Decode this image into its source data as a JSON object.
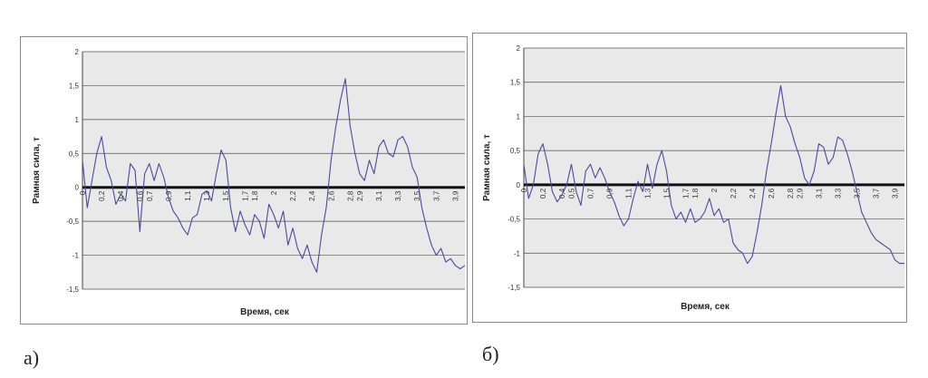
{
  "captions": {
    "a": "а)",
    "b": "б)"
  },
  "colors": {
    "series": "#4a4a9c",
    "grid": "#505050",
    "zero_line": "#111111",
    "plot_bg": "#e9e9e9"
  },
  "chart_data": [
    {
      "type": "line",
      "xlabel": "Время, сек",
      "ylabel": "Рамная сила, т",
      "ylim": [
        -1.5,
        2
      ],
      "yticks": [
        -1.5,
        -1,
        -0.5,
        0,
        0.5,
        1,
        1.5,
        2
      ],
      "ytick_labels": [
        "-1,5",
        "-1",
        "-0,5",
        "0",
        "0,5",
        "1",
        "1,5",
        "2"
      ],
      "xlim": [
        0,
        4
      ],
      "xtick_values": [
        0,
        0.2,
        0.4,
        0.6,
        0.7,
        0.9,
        1.1,
        1.3,
        1.5,
        1.7,
        1.8,
        2,
        2.2,
        2.4,
        2.6,
        2.8,
        2.9,
        3.1,
        3.3,
        3.5,
        3.7,
        3.9
      ],
      "xtick_labels": [
        "0",
        "0,2",
        "0,4",
        "0,6",
        "0,7",
        "0,9",
        "1,1",
        "1,3",
        "1,5",
        "1,7",
        "1,8",
        "2",
        "2,2",
        "2,4",
        "2,6",
        "2,8",
        "2,9",
        "3,1",
        "3,3",
        "3,5",
        "3,7",
        "3,9"
      ],
      "grid": true,
      "legend": false,
      "series": [
        {
          "x": [
            0,
            0.05,
            0.1,
            0.15,
            0.2,
            0.25,
            0.3,
            0.35,
            0.4,
            0.45,
            0.5,
            0.55,
            0.6,
            0.65,
            0.7,
            0.75,
            0.8,
            0.85,
            0.9,
            0.95,
            1.0,
            1.05,
            1.1,
            1.15,
            1.2,
            1.25,
            1.3,
            1.35,
            1.4,
            1.45,
            1.5,
            1.55,
            1.6,
            1.65,
            1.7,
            1.75,
            1.8,
            1.85,
            1.9,
            1.95,
            2.0,
            2.05,
            2.1,
            2.15,
            2.2,
            2.25,
            2.3,
            2.35,
            2.4,
            2.45,
            2.5,
            2.55,
            2.6,
            2.65,
            2.7,
            2.75,
            2.8,
            2.85,
            2.9,
            2.95,
            3.0,
            3.05,
            3.1,
            3.15,
            3.2,
            3.25,
            3.3,
            3.35,
            3.4,
            3.45,
            3.5,
            3.55,
            3.6,
            3.65,
            3.7,
            3.75,
            3.8,
            3.85,
            3.9,
            3.95,
            4.0
          ],
          "values": [
            0.4,
            -0.3,
            0.1,
            0.5,
            0.75,
            0.3,
            0.1,
            -0.25,
            -0.1,
            -0.2,
            0.35,
            0.25,
            -0.65,
            0.2,
            0.35,
            0.1,
            0.35,
            0.15,
            -0.15,
            -0.35,
            -0.45,
            -0.6,
            -0.7,
            -0.45,
            -0.4,
            -0.1,
            -0.05,
            -0.2,
            0.2,
            0.55,
            0.4,
            -0.3,
            -0.65,
            -0.35,
            -0.55,
            -0.7,
            -0.4,
            -0.5,
            -0.75,
            -0.25,
            -0.4,
            -0.6,
            -0.35,
            -0.85,
            -0.6,
            -0.9,
            -1.05,
            -0.85,
            -1.1,
            -1.25,
            -0.7,
            -0.3,
            0.4,
            0.9,
            1.3,
            1.6,
            0.9,
            0.5,
            0.2,
            0.1,
            0.4,
            0.2,
            0.6,
            0.7,
            0.5,
            0.45,
            0.7,
            0.75,
            0.6,
            0.3,
            0.15,
            -0.3,
            -0.6,
            -0.85,
            -1.0,
            -0.9,
            -1.1,
            -1.05,
            -1.15,
            -1.2,
            -1.15
          ]
        }
      ]
    },
    {
      "type": "line",
      "xlabel": "Время, сек",
      "ylabel": "Рамная сила, т",
      "ylim": [
        -1.5,
        2
      ],
      "yticks": [
        -1.5,
        -1,
        -0.5,
        0,
        0.5,
        1,
        1.5,
        2
      ],
      "ytick_labels": [
        "-1,5",
        "-1",
        "-0,5",
        "0",
        "0,5",
        "1",
        "1,5",
        "2"
      ],
      "xlim": [
        0,
        4
      ],
      "xtick_values": [
        0,
        0.2,
        0.4,
        0.5,
        0.7,
        0.9,
        1.1,
        1.3,
        1.5,
        1.7,
        1.8,
        2,
        2.2,
        2.4,
        2.6,
        2.8,
        2.9,
        3.1,
        3.3,
        3.5,
        3.7,
        3.9
      ],
      "xtick_labels": [
        "0",
        "0,2",
        "0,4",
        "0,5",
        "0,7",
        "0,9",
        "1,1",
        "1,3",
        "1,5",
        "1,7",
        "1,8",
        "2",
        "2,2",
        "2,4",
        "2,6",
        "2,8",
        "2,9",
        "3,1",
        "3,3",
        "3,5",
        "3,7",
        "3,9"
      ],
      "grid": true,
      "legend": false,
      "series": [
        {
          "x": [
            0,
            0.05,
            0.1,
            0.15,
            0.2,
            0.25,
            0.3,
            0.35,
            0.4,
            0.45,
            0.5,
            0.55,
            0.6,
            0.65,
            0.7,
            0.75,
            0.8,
            0.85,
            0.9,
            0.95,
            1.0,
            1.05,
            1.1,
            1.15,
            1.2,
            1.25,
            1.3,
            1.35,
            1.4,
            1.45,
            1.5,
            1.55,
            1.6,
            1.65,
            1.7,
            1.75,
            1.8,
            1.85,
            1.9,
            1.95,
            2.0,
            2.05,
            2.1,
            2.15,
            2.2,
            2.25,
            2.3,
            2.35,
            2.4,
            2.45,
            2.5,
            2.55,
            2.6,
            2.65,
            2.7,
            2.75,
            2.8,
            2.85,
            2.9,
            2.95,
            3.0,
            3.05,
            3.1,
            3.15,
            3.2,
            3.25,
            3.3,
            3.35,
            3.4,
            3.45,
            3.5,
            3.55,
            3.6,
            3.65,
            3.7,
            3.75,
            3.8,
            3.85,
            3.9,
            3.95,
            4.0
          ],
          "values": [
            0.3,
            -0.2,
            0.0,
            0.45,
            0.6,
            0.3,
            -0.1,
            -0.25,
            -0.15,
            0.0,
            0.3,
            -0.1,
            -0.3,
            0.2,
            0.3,
            0.1,
            0.25,
            0.1,
            -0.1,
            -0.25,
            -0.45,
            -0.6,
            -0.5,
            -0.2,
            0.05,
            -0.1,
            0.3,
            -0.05,
            0.3,
            0.5,
            0.2,
            -0.3,
            -0.5,
            -0.4,
            -0.55,
            -0.35,
            -0.55,
            -0.5,
            -0.4,
            -0.2,
            -0.45,
            -0.35,
            -0.55,
            -0.5,
            -0.85,
            -0.95,
            -1.0,
            -1.15,
            -1.05,
            -0.7,
            -0.3,
            0.2,
            0.6,
            1.05,
            1.45,
            1.0,
            0.85,
            0.6,
            0.4,
            0.1,
            0.0,
            0.2,
            0.6,
            0.55,
            0.3,
            0.4,
            0.7,
            0.65,
            0.45,
            0.2,
            -0.1,
            -0.4,
            -0.55,
            -0.7,
            -0.8,
            -0.85,
            -0.9,
            -0.95,
            -1.1,
            -1.15,
            -1.15
          ]
        }
      ]
    }
  ]
}
